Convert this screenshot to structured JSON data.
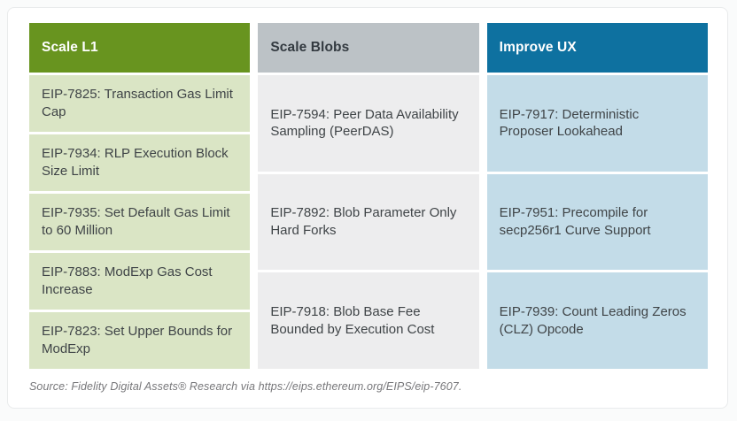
{
  "chart_data": {
    "type": "table",
    "columns": [
      {
        "header": "Scale L1",
        "items": [
          "EIP-7825: Transaction Gas Limit Cap",
          "EIP-7934: RLP Execution Block Size Limit",
          "EIP-7935: Set Default Gas Limit to 60 Million",
          "EIP-7883: ModExp Gas Cost Increase",
          "EIP-7823: Set Upper Bounds for ModExp"
        ]
      },
      {
        "header": "Scale Blobs",
        "items": [
          "EIP-7594: Peer Data Availability Sampling (PeerDAS)",
          "EIP-7892: Blob Parameter Only Hard Forks",
          "EIP-7918: Blob Base Fee Bounded by Execution Cost"
        ]
      },
      {
        "header": "Improve UX",
        "items": [
          "EIP-7917: Deterministic Proposer Lookahead",
          "EIP-7951: Precompile for secp256r1 Curve Support",
          "EIP-7939: Count Leading Zeros (CLZ) Opcode"
        ]
      }
    ],
    "source": "Source: Fidelity Digital Assets® Research via https://eips.ethereum.org/EIPS/eip-7607."
  },
  "colors": {
    "scale_l1_header_bg": "#68941f",
    "scale_l1_cell_bg": "#dae5c5",
    "scale_blobs_header_bg": "#bcc2c6",
    "scale_blobs_cell_bg": "#ededee",
    "improve_ux_header_bg": "#0e71a0",
    "improve_ux_cell_bg": "#c3dce8",
    "header_text_light": "#ffffff",
    "header_text_dark": "#333a40",
    "cell_text": "#3f4447",
    "source_text": "#77777a"
  }
}
